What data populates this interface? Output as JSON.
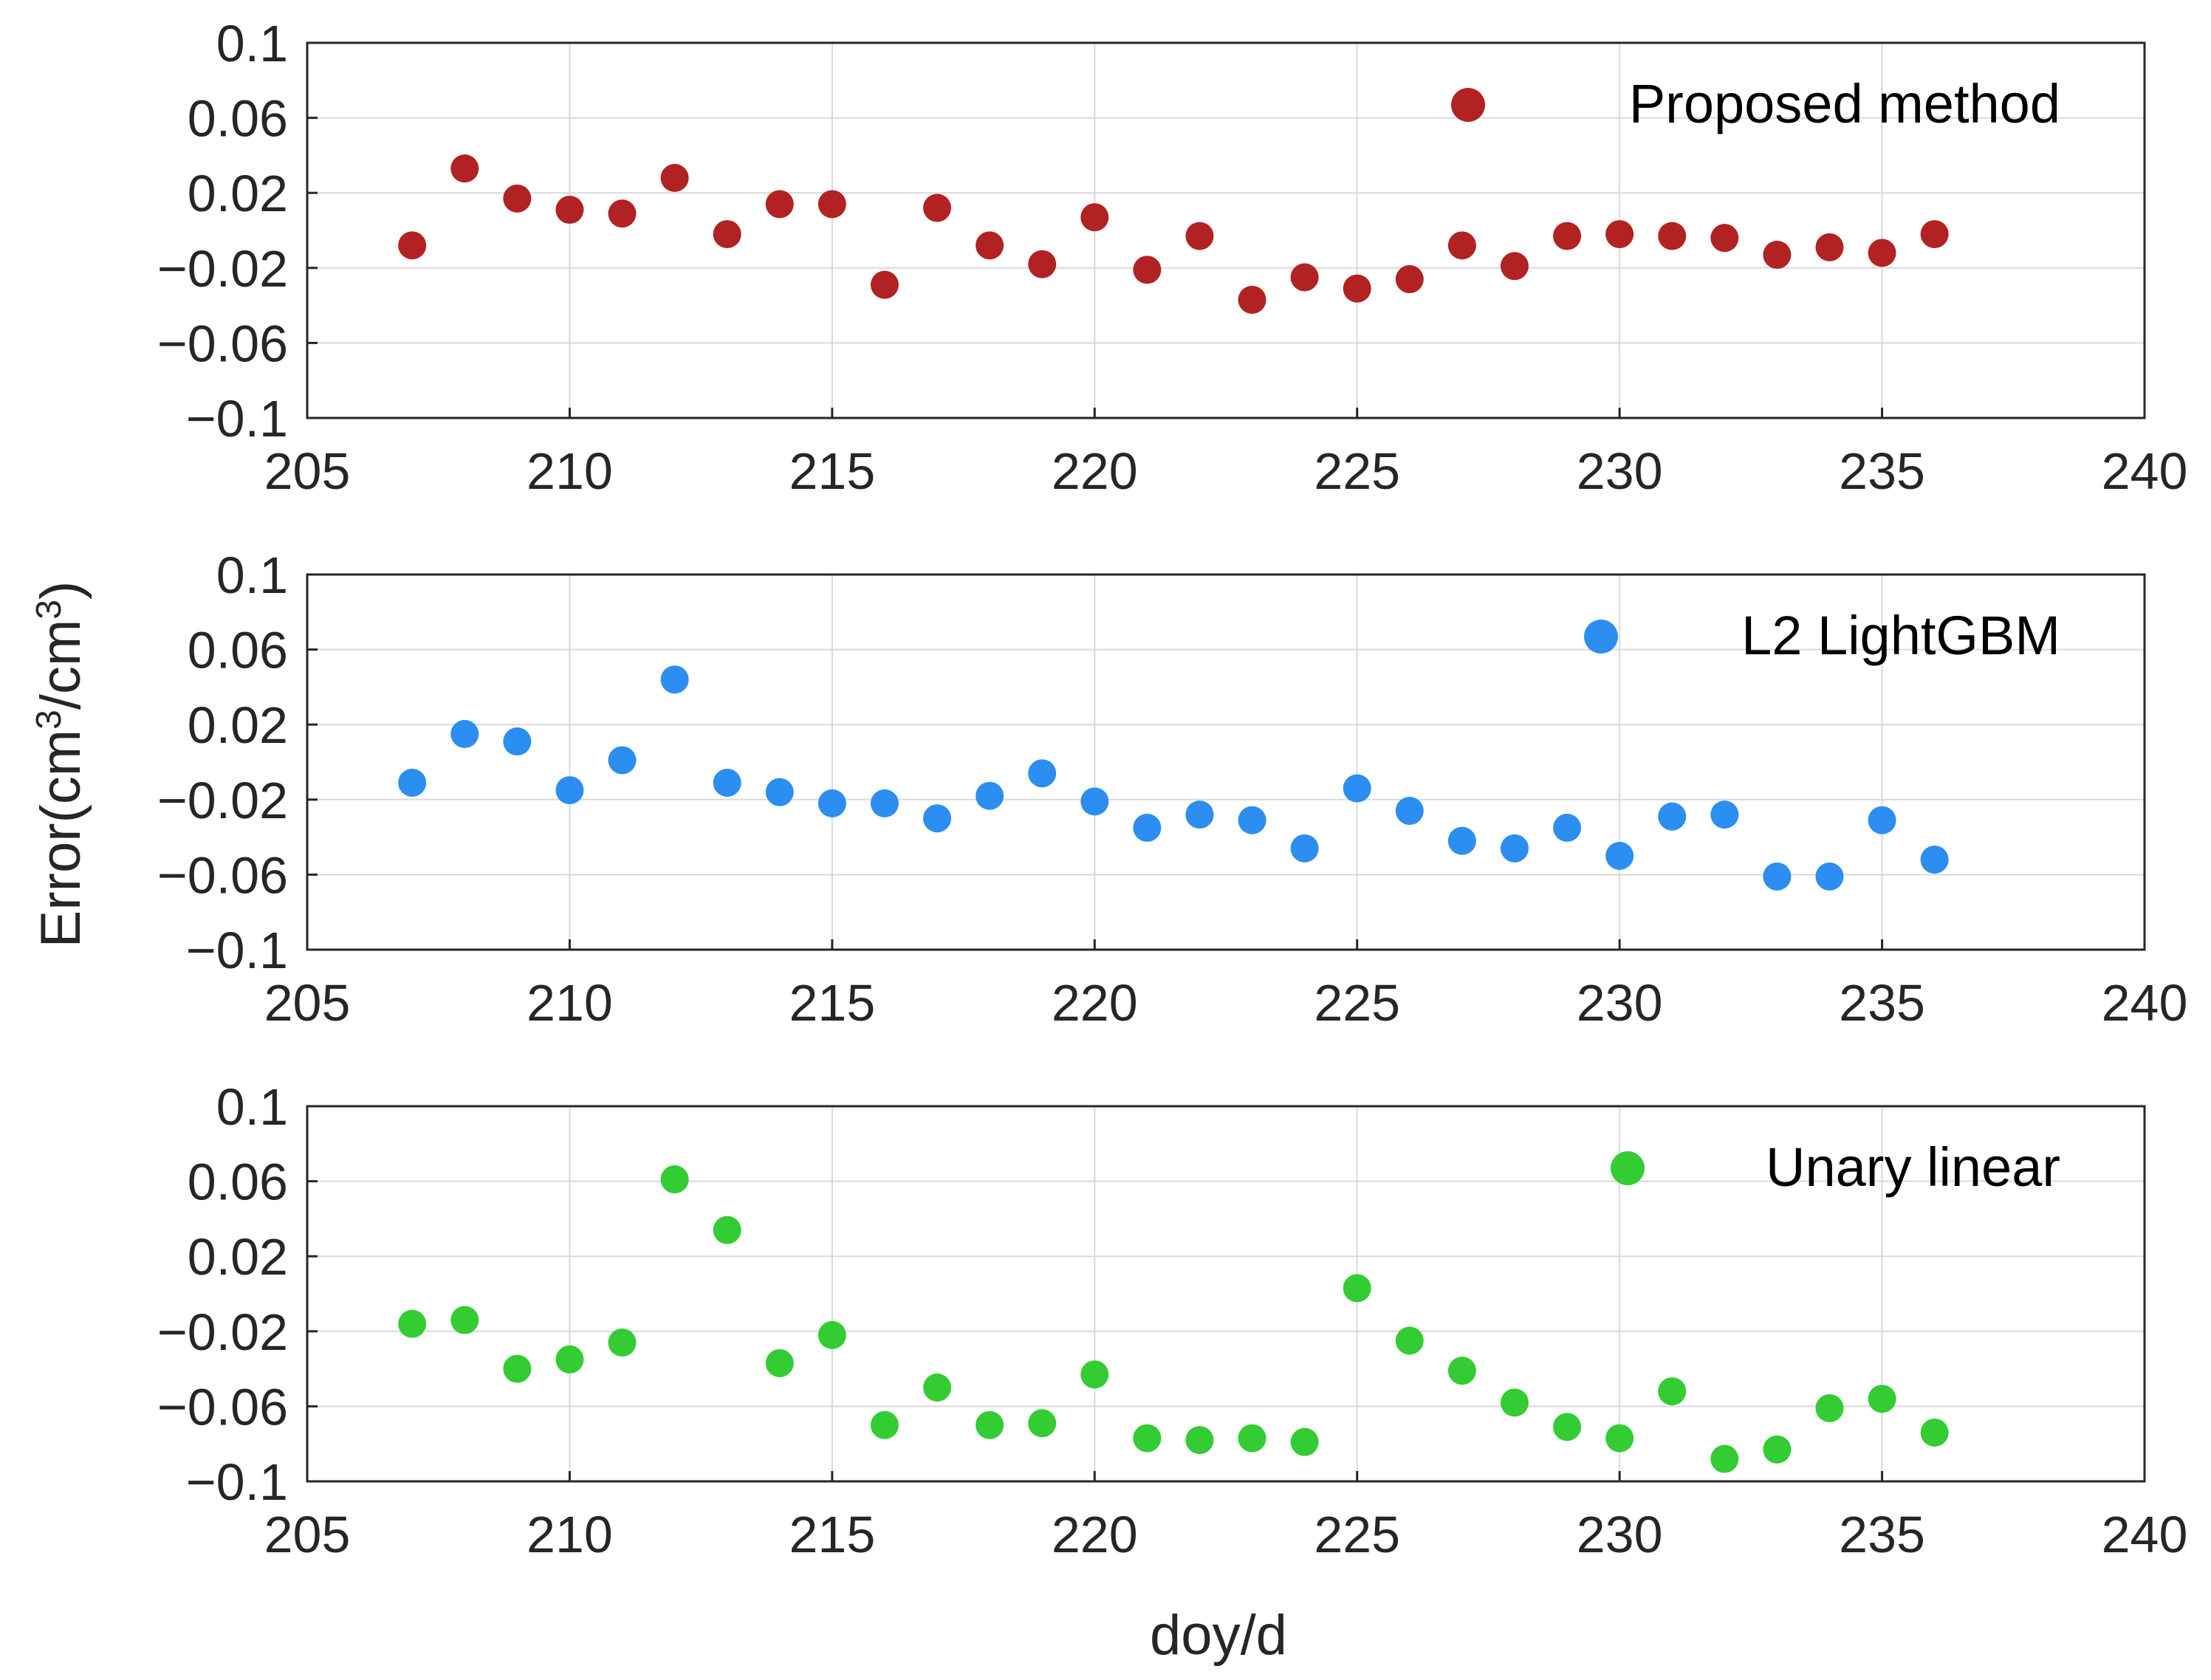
{
  "chart_data": {
    "type": "scatter",
    "x_label": "doy/d",
    "y_label": {
      "prefix": "Error(cm",
      "sup1": "3",
      "middle": "/cm",
      "sup2": "3",
      "suffix": ")"
    },
    "xlim": [
      205,
      240
    ],
    "ylim": [
      -0.1,
      0.1
    ],
    "x_ticks": [
      "205",
      "210",
      "215",
      "220",
      "225",
      "230",
      "235",
      "240"
    ],
    "y_ticks": [
      "-0.1",
      "-0.06",
      "-0.02",
      "0.02",
      "0.06",
      "0.1"
    ],
    "y_tick_labels": [
      "−0.1",
      "−0.06",
      "−0.02",
      "0.02",
      "0.06",
      "0.1"
    ],
    "grid": true,
    "legend_position": "top-right",
    "x": [
      207,
      208,
      209,
      210,
      211,
      212,
      213,
      214,
      215,
      216,
      217,
      218,
      219,
      220,
      221,
      222,
      223,
      224,
      225,
      226,
      227,
      228,
      229,
      230,
      231,
      232,
      233,
      234,
      235,
      236
    ],
    "series": [
      {
        "name": "Proposed method",
        "color": "#b22222",
        "values": [
          -0.008,
          0.033,
          0.017,
          0.011,
          0.009,
          0.028,
          -0.002,
          0.014,
          0.014,
          -0.029,
          0.012,
          -0.008,
          -0.018,
          0.007,
          -0.021,
          -0.003,
          -0.037,
          -0.025,
          -0.031,
          -0.026,
          -0.008,
          -0.019,
          -0.003,
          -0.002,
          -0.003,
          -0.004,
          -0.013,
          -0.009,
          -0.012,
          -0.002
        ]
      },
      {
        "name": "L2 LightGBM",
        "color": "#2b8ef0",
        "values": [
          -0.011,
          0.015,
          0.011,
          -0.015,
          0.001,
          0.044,
          -0.011,
          -0.016,
          -0.022,
          -0.022,
          -0.03,
          -0.018,
          -0.006,
          -0.021,
          -0.035,
          -0.028,
          -0.031,
          -0.046,
          -0.014,
          -0.026,
          -0.042,
          -0.046,
          -0.035,
          -0.05,
          -0.029,
          -0.028,
          -0.061,
          -0.061,
          -0.031,
          -0.052
        ]
      },
      {
        "name": "Unary linear",
        "color": "#33cc33",
        "values": [
          -0.016,
          -0.014,
          -0.04,
          -0.035,
          -0.026,
          0.061,
          0.034,
          -0.037,
          -0.022,
          -0.07,
          -0.05,
          -0.07,
          -0.069,
          -0.043,
          -0.077,
          -0.078,
          -0.077,
          -0.079,
          0.003,
          -0.025,
          -0.041,
          -0.058,
          -0.071,
          -0.077,
          -0.052,
          -0.088,
          -0.083,
          -0.061,
          -0.056,
          -0.074
        ]
      }
    ]
  }
}
